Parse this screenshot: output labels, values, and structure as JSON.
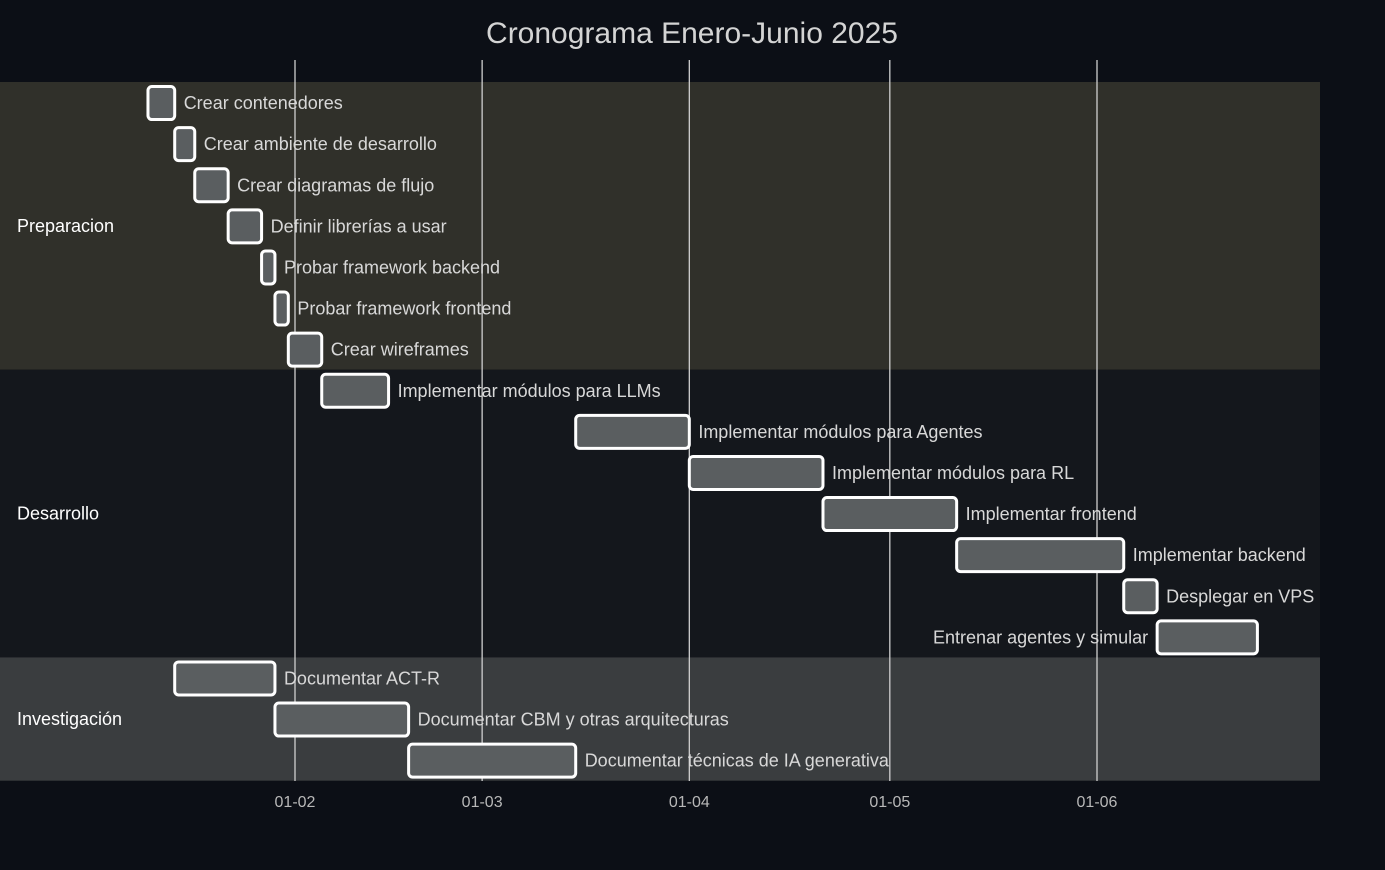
{
  "chart_data": {
    "type": "gantt",
    "title": "Cronograma Enero-Junio 2025",
    "x_axis": {
      "ticks": [
        "01-02",
        "01-03",
        "01-04",
        "01-05",
        "01-06"
      ],
      "tick_dates": [
        "2025-02-01",
        "2025-03-01",
        "2025-04-01",
        "2025-05-01",
        "2025-06-01"
      ],
      "range": [
        "2025-01-01",
        "2025-07-01"
      ]
    },
    "colors": {
      "background": "#0c0f16",
      "bar_fill": "#5a5e60",
      "bar_stroke": "#ffffff",
      "grid": "#cfcfcf",
      "section_backgrounds": [
        "#30302a",
        "#14171c",
        "#3a3d3f"
      ]
    },
    "sections": [
      {
        "name": "Preparacion",
        "tasks": [
          {
            "name": "Crear contenedores",
            "start": "2025-01-10",
            "end": "2025-01-14"
          },
          {
            "name": "Crear ambiente de desarrollo",
            "start": "2025-01-14",
            "end": "2025-01-17"
          },
          {
            "name": "Crear diagramas de flujo",
            "start": "2025-01-17",
            "end": "2025-01-22"
          },
          {
            "name": "Definir librerías a usar",
            "start": "2025-01-22",
            "end": "2025-01-27"
          },
          {
            "name": "Probar framework backend",
            "start": "2025-01-27",
            "end": "2025-01-29"
          },
          {
            "name": "Probar framework frontend",
            "start": "2025-01-29",
            "end": "2025-01-31"
          },
          {
            "name": "Crear wireframes",
            "start": "2025-01-31",
            "end": "2025-02-05"
          }
        ]
      },
      {
        "name": "Desarrollo",
        "tasks": [
          {
            "name": "Implementar módulos para LLMs",
            "start": "2025-02-05",
            "end": "2025-02-15"
          },
          {
            "name": "Implementar módulos para Agentes",
            "start": "2025-03-15",
            "end": "2025-04-01"
          },
          {
            "name": "Implementar módulos para RL",
            "start": "2025-04-01",
            "end": "2025-04-21"
          },
          {
            "name": "Implementar frontend",
            "start": "2025-04-21",
            "end": "2025-05-11"
          },
          {
            "name": "Implementar backend",
            "start": "2025-05-11",
            "end": "2025-06-05"
          },
          {
            "name": "Desplegar en VPS",
            "start": "2025-06-05",
            "end": "2025-06-10"
          },
          {
            "name": "Entrenar agentes y simular",
            "start": "2025-06-10",
            "end": "2025-06-25"
          }
        ]
      },
      {
        "name": "Investigación",
        "tasks": [
          {
            "name": "Documentar ACT-R",
            "start": "2025-01-14",
            "end": "2025-01-29"
          },
          {
            "name": "Documentar CBM y otras arquitecturas",
            "start": "2025-01-29",
            "end": "2025-02-18"
          },
          {
            "name": "Documentar técnicas de IA generativa",
            "start": "2025-02-18",
            "end": "2025-03-15"
          }
        ]
      }
    ]
  }
}
